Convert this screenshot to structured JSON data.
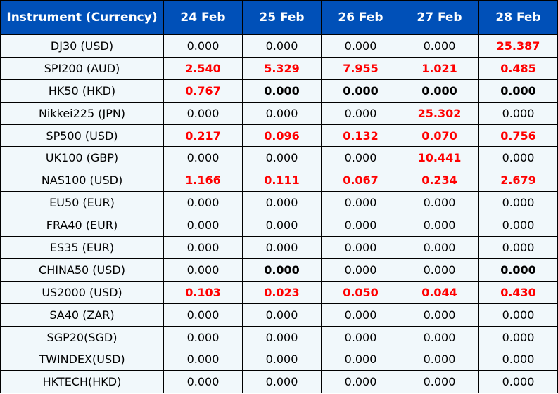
{
  "colors": {
    "header_bg": "#0050b8",
    "header_text": "#ffffff",
    "row_bg": "#f1f8fb",
    "highlight": "#ff0000"
  },
  "headers": [
    "Instrument (Currency)",
    "24 Feb",
    "25 Feb",
    "26 Feb",
    "27 Feb",
    "28 Feb"
  ],
  "rows": [
    {
      "instrument": "DJ30 (USD)",
      "values": [
        "0.000",
        "0.000",
        "0.000",
        "0.000",
        "25.387"
      ]
    },
    {
      "instrument": "SPI200 (AUD)",
      "values": [
        "2.540",
        "5.329",
        "7.955",
        "1.021",
        "0.485"
      ]
    },
    {
      "instrument": "HK50 (HKD)",
      "values": [
        "0.767",
        "0.000",
        "0.000",
        "0.000",
        "0.000"
      ]
    },
    {
      "instrument": "Nikkei225 (JPN)",
      "values": [
        "0.000",
        "0.000",
        "0.000",
        "25.302",
        "0.000"
      ]
    },
    {
      "instrument": "SP500 (USD)",
      "values": [
        "0.217",
        "0.096",
        "0.132",
        "0.070",
        "0.756"
      ]
    },
    {
      "instrument": "UK100 (GBP)",
      "values": [
        "0.000",
        "0.000",
        "0.000",
        "10.441",
        "0.000"
      ]
    },
    {
      "instrument": "NAS100 (USD)",
      "values": [
        "1.166",
        "0.111",
        "0.067",
        "0.234",
        "2.679"
      ]
    },
    {
      "instrument": "EU50 (EUR)",
      "values": [
        "0.000",
        "0.000",
        "0.000",
        "0.000",
        "0.000"
      ]
    },
    {
      "instrument": "FRA40 (EUR)",
      "values": [
        "0.000",
        "0.000",
        "0.000",
        "0.000",
        "0.000"
      ]
    },
    {
      "instrument": "ES35 (EUR)",
      "values": [
        "0.000",
        "0.000",
        "0.000",
        "0.000",
        "0.000"
      ]
    },
    {
      "instrument": "CHINA50 (USD)",
      "values": [
        "0.000",
        "0.000",
        "0.000",
        "0.000",
        "0.000"
      ]
    },
    {
      "instrument": "US2000 (USD)",
      "values": [
        "0.103",
        "0.023",
        "0.050",
        "0.044",
        "0.430"
      ]
    },
    {
      "instrument": "SA40 (ZAR)",
      "values": [
        "0.000",
        "0.000",
        "0.000",
        "0.000",
        "0.000"
      ]
    },
    {
      "instrument": "SGP20(SGD)",
      "values": [
        "0.000",
        "0.000",
        "0.000",
        "0.000",
        "0.000"
      ]
    },
    {
      "instrument": "TWINDEX(USD)",
      "values": [
        "0.000",
        "0.000",
        "0.000",
        "0.000",
        "0.000"
      ]
    },
    {
      "instrument": "HKTECH(HKD)",
      "values": [
        "0.000",
        "0.000",
        "0.000",
        "0.000",
        "0.000"
      ]
    }
  ]
}
